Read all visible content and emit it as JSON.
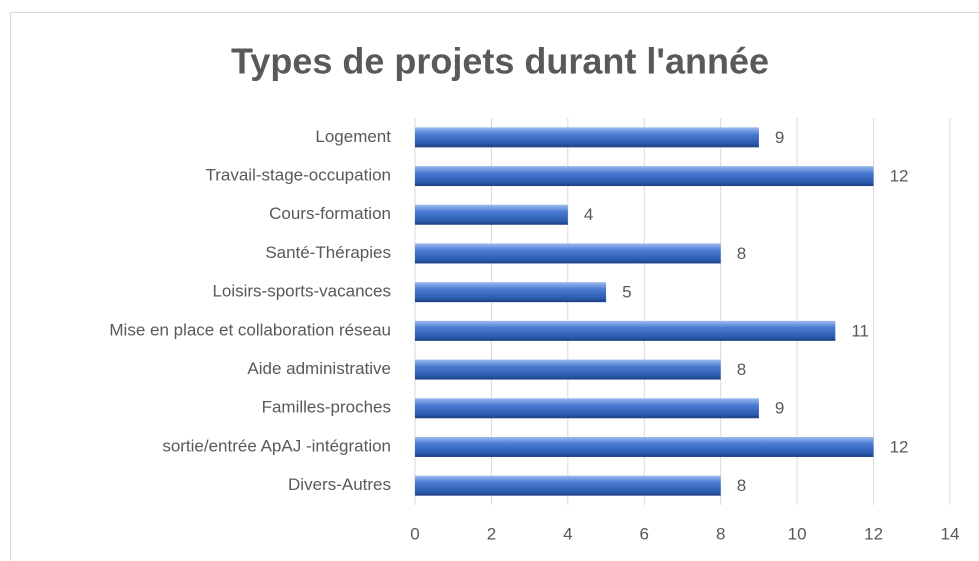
{
  "chart_data": {
    "type": "bar",
    "orientation": "horizontal",
    "title": "Types de projets durant l'année",
    "categories": [
      "Logement",
      "Travail-stage-occupation",
      "Cours-formation",
      "Santé-Thérapies",
      "Loisirs-sports-vacances",
      "Mise en place et collaboration réseau",
      "Aide administrative",
      "Familles-proches",
      "sortie/entrée ApAJ -intégration",
      "Divers-Autres"
    ],
    "values": [
      9,
      12,
      4,
      8,
      5,
      11,
      8,
      9,
      12,
      8
    ],
    "color": "#4472c4",
    "xlim": [
      0,
      14
    ],
    "xticks": [
      0,
      2,
      4,
      6,
      8,
      10,
      12,
      14
    ],
    "grid": true,
    "data_labels": true
  }
}
